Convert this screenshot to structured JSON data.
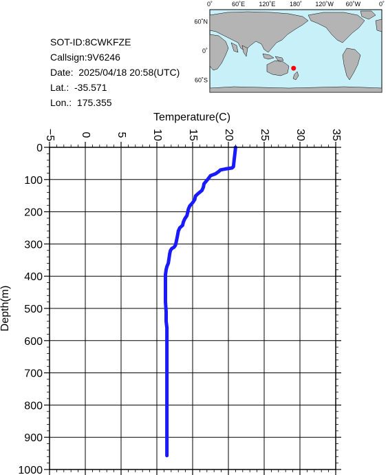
{
  "info": {
    "sot_id": "SOT-ID:8CWKFZE",
    "callsign": "Callsign:9V6246",
    "date": "Date:  2025/04/18 20:58(UTC)",
    "lat": "Lat.:  -35.571",
    "lon": "Lon.:  175.355"
  },
  "map": {
    "top_labels": [
      "0˚",
      "60˚E",
      "120˚E",
      "180˚",
      "120˚W",
      "60˚W",
      "0˚"
    ],
    "left_labels": [
      "60˚N",
      "0˚",
      "60˚S"
    ],
    "ocean_color": "#c8f0f8",
    "land_color": "#b4b4b4",
    "marker_color": "#ff0000",
    "marker_lat": -35.571,
    "marker_lon": 175.355
  },
  "chart_data": {
    "type": "line",
    "xlabel": "Temperature(C)",
    "ylabel": "Depth(m)",
    "xlim": [
      -5,
      35
    ],
    "ylim": [
      1000,
      0
    ],
    "x_ticks": [
      -5,
      0,
      5,
      10,
      15,
      20,
      25,
      30,
      35
    ],
    "y_ticks": [
      0,
      100,
      200,
      300,
      400,
      500,
      600,
      700,
      800,
      900,
      1000
    ],
    "grid": true,
    "line_color": "#1a1aff",
    "series": [
      {
        "points": [
          [
            21.0,
            0
          ],
          [
            20.9,
            20
          ],
          [
            20.8,
            40
          ],
          [
            20.7,
            60
          ],
          [
            20.5,
            64
          ],
          [
            19.6,
            67
          ],
          [
            18.9,
            70
          ],
          [
            18.6,
            76
          ],
          [
            18.2,
            82
          ],
          [
            17.5,
            88
          ],
          [
            17.2,
            97
          ],
          [
            16.9,
            105
          ],
          [
            16.6,
            113
          ],
          [
            16.5,
            124
          ],
          [
            16.3,
            134
          ],
          [
            15.8,
            143
          ],
          [
            15.4,
            151
          ],
          [
            15.3,
            162
          ],
          [
            15.0,
            172
          ],
          [
            14.6,
            182
          ],
          [
            14.4,
            192
          ],
          [
            14.3,
            203
          ],
          [
            14.2,
            212
          ],
          [
            13.9,
            222
          ],
          [
            13.7,
            232
          ],
          [
            13.6,
            242
          ],
          [
            13.2,
            250
          ],
          [
            13.0,
            260
          ],
          [
            12.9,
            272
          ],
          [
            12.8,
            284
          ],
          [
            12.7,
            294
          ],
          [
            12.6,
            304
          ],
          [
            12.4,
            310
          ],
          [
            12.1,
            314
          ],
          [
            11.9,
            320
          ],
          [
            11.8,
            330
          ],
          [
            11.7,
            345
          ],
          [
            11.6,
            360
          ],
          [
            11.4,
            370
          ],
          [
            11.3,
            380
          ],
          [
            11.2,
            395
          ],
          [
            11.2,
            420
          ],
          [
            11.2,
            450
          ],
          [
            11.2,
            480
          ],
          [
            11.3,
            510
          ],
          [
            11.3,
            540
          ],
          [
            11.4,
            560
          ],
          [
            11.4,
            600
          ],
          [
            11.4,
            650
          ],
          [
            11.4,
            700
          ],
          [
            11.4,
            750
          ],
          [
            11.4,
            800
          ],
          [
            11.4,
            850
          ],
          [
            11.4,
            900
          ],
          [
            11.4,
            957
          ]
        ]
      }
    ]
  }
}
